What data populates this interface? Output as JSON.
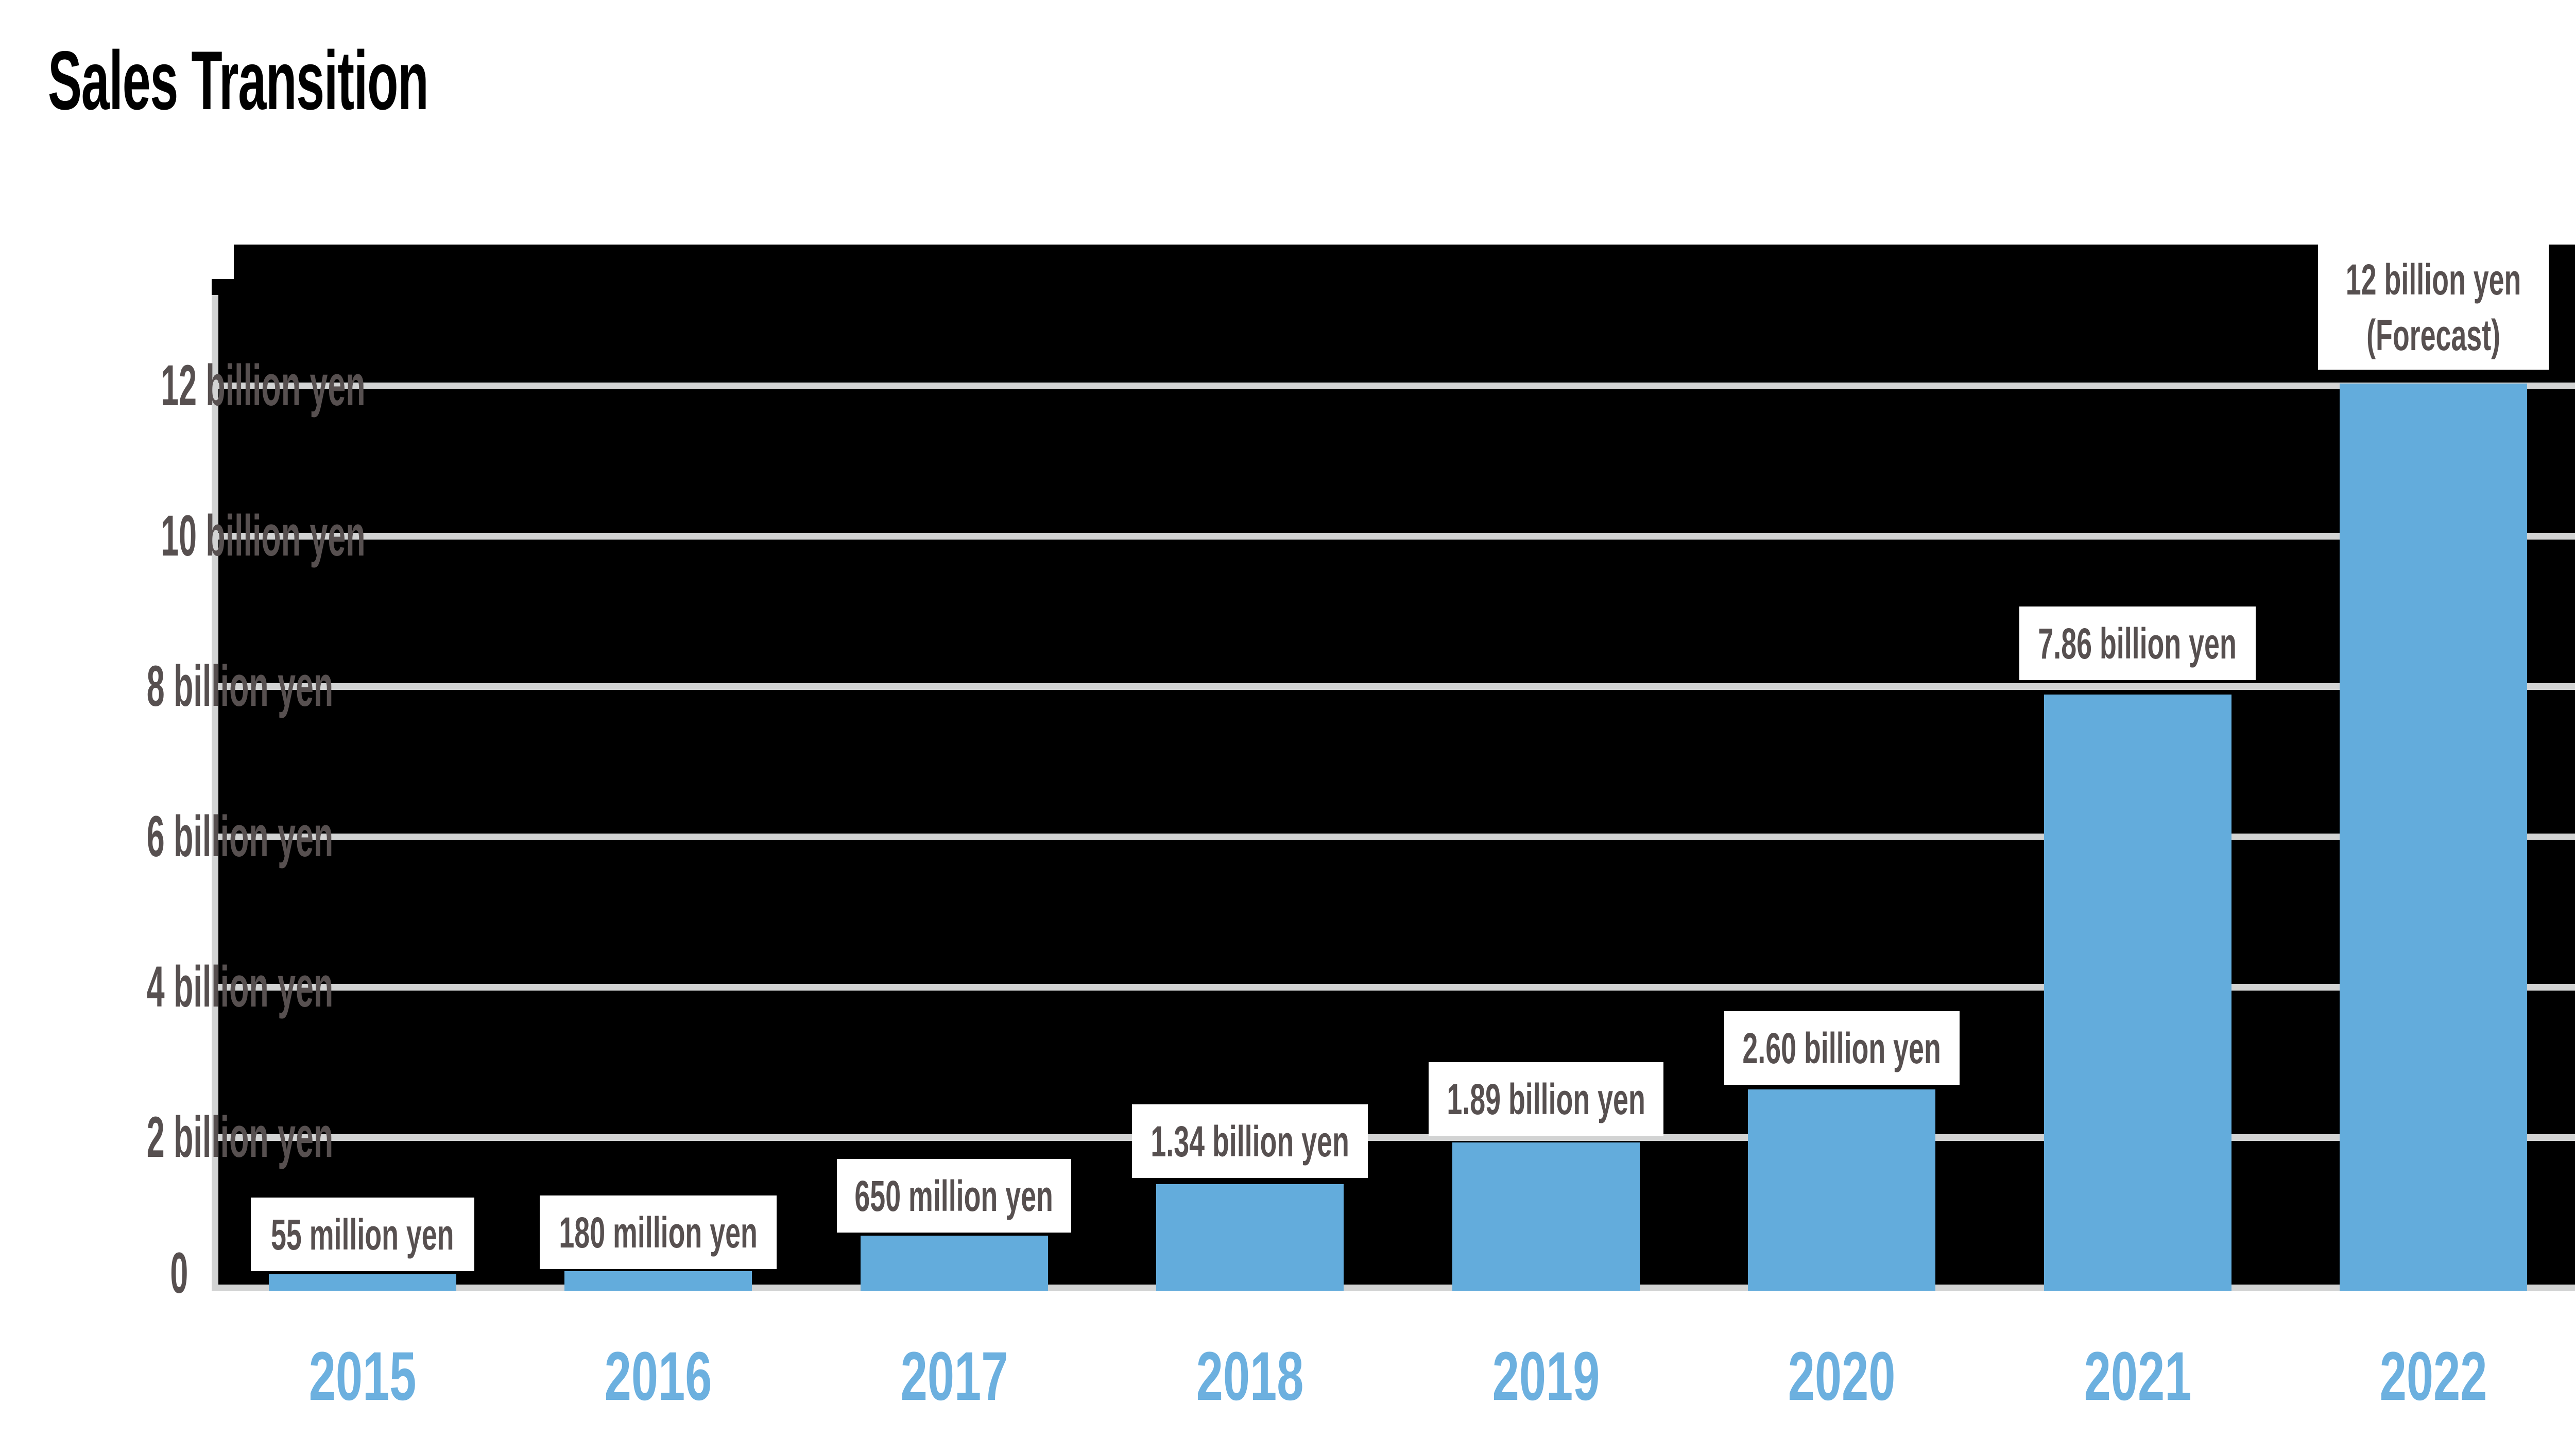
{
  "title": "Sales Transition",
  "chart_data": {
    "type": "bar",
    "title": "Sales Transition",
    "unit": "billion yen",
    "categories": [
      "2015",
      "2016",
      "2017",
      "2018",
      "2019",
      "2020",
      "2021",
      "2022"
    ],
    "series": [
      {
        "name": "Sales",
        "values_billion_yen": [
          0.055,
          0.18,
          0.65,
          1.34,
          1.89,
          2.6,
          7.86,
          12
        ]
      }
    ],
    "data_labels": [
      {
        "lines": [
          "55 million yen"
        ],
        "forecast": false
      },
      {
        "lines": [
          "180 million yen"
        ],
        "forecast": false
      },
      {
        "lines": [
          "650 million yen"
        ],
        "forecast": false
      },
      {
        "lines": [
          "1.34 billion yen"
        ],
        "forecast": false
      },
      {
        "lines": [
          "1.89 billion yen"
        ],
        "forecast": false
      },
      {
        "lines": [
          "2.60 billion yen"
        ],
        "forecast": false
      },
      {
        "lines": [
          "7.86 billion yen"
        ],
        "forecast": false
      },
      {
        "lines": [
          "12 billion yen",
          "(Forecast)"
        ],
        "forecast": true
      }
    ],
    "y_axis": {
      "range_billion_yen": [
        0,
        12
      ],
      "tick_step_billion_yen": 2,
      "ticks": [
        {
          "value_billion_yen": 12,
          "label": "12 billion yen"
        },
        {
          "value_billion_yen": 10,
          "label": "10 billion yen"
        },
        {
          "value_billion_yen": 8,
          "label": "8 billion yen"
        },
        {
          "value_billion_yen": 6,
          "label": "6 billion yen"
        },
        {
          "value_billion_yen": 4,
          "label": "4 billion yen"
        },
        {
          "value_billion_yen": 2,
          "label": "2 billion yen"
        },
        {
          "value_billion_yen": 0,
          "label": "0"
        }
      ]
    },
    "x_axis": {
      "labels": [
        "2015",
        "2016",
        "2017",
        "2018",
        "2019",
        "2020",
        "2021",
        "2022"
      ]
    },
    "legend": {
      "visible": false
    },
    "grid": {
      "visible": true,
      "orientation": "horizontal"
    },
    "colors": {
      "bar": "#63ACDC",
      "plot_background": "#000000",
      "gridline": "#D2D3D3",
      "axis_line": "#D2D3D3",
      "value_label_text": "#575050",
      "value_label_background": "#FFFFFF",
      "year_label_text": "#6CB0DF",
      "axis_tick_text": "#575050",
      "title_text": "#000000",
      "page_background": "#FFFFFF"
    }
  }
}
